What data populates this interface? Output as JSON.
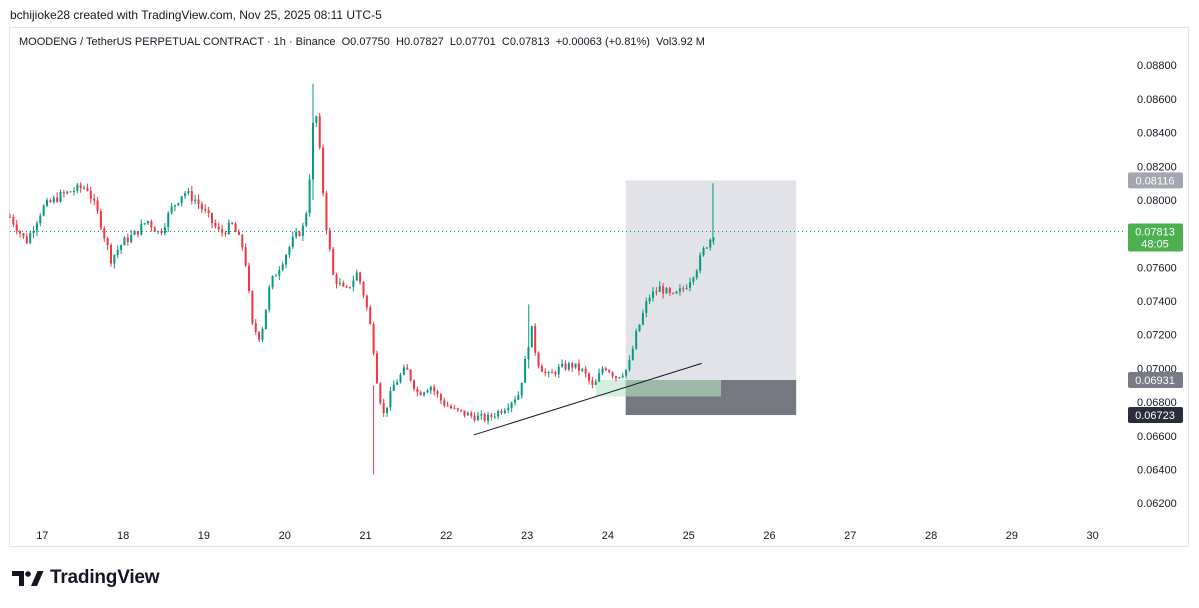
{
  "header": {
    "creator_line": "bchijioke28 created with TradingView.com, Nov 25, 2025 08:11 UTC-5"
  },
  "legend": {
    "symbol": "MOODENG / TetherUS PERPETUAL CONTRACT · 1h · Binance",
    "open_label": "O",
    "open": "0.07750",
    "high_label": "H",
    "high": "0.07827",
    "low_label": "L",
    "low": "0.07701",
    "close_label": "C",
    "close": "0.07813",
    "change": "+0.00063 (+0.81%)",
    "vol_label": "Vol",
    "vol": "3.92 M"
  },
  "brand": {
    "name": "TradingView"
  },
  "colors": {
    "up": "#089981",
    "down": "#f23645",
    "text": "#131722",
    "last_price_badge": "#4caf50",
    "target_badge": "#a3a6af",
    "entry_badge": "#787b86",
    "stop_badge": "#2a2e39",
    "target_zone": "#d1d4dc",
    "stop_zone": "#5d606b",
    "demand_zone": "#b7e4c7"
  },
  "chart_data": {
    "type": "candlestick",
    "title": "MOODENG / TetherUS PERPETUAL CONTRACT · 1h · Binance",
    "x_label": "",
    "y_label": "",
    "x_ticks": [
      "17",
      "18",
      "19",
      "20",
      "21",
      "22",
      "23",
      "24",
      "25",
      "26",
      "27",
      "28",
      "29",
      "30"
    ],
    "y_ticks": [
      "0.06200",
      "0.06400",
      "0.06600",
      "0.06800",
      "0.07000",
      "0.07200",
      "0.07400",
      "0.07600",
      "0.07800",
      "0.08000",
      "0.08200",
      "0.08400",
      "0.08600",
      "0.08800"
    ],
    "y_range": [
      0.061,
      0.0892
    ],
    "x_range_days": [
      16.6,
      30.4
    ],
    "price_path": [
      [
        16.6,
        0.079
      ],
      [
        16.8,
        0.0775
      ],
      [
        17.0,
        0.0795
      ],
      [
        17.2,
        0.0802
      ],
      [
        17.4,
        0.0806
      ],
      [
        17.55,
        0.0808
      ],
      [
        17.7,
        0.079
      ],
      [
        17.85,
        0.0765
      ],
      [
        18.0,
        0.0775
      ],
      [
        18.15,
        0.078
      ],
      [
        18.3,
        0.0788
      ],
      [
        18.45,
        0.078
      ],
      [
        18.6,
        0.0795
      ],
      [
        18.75,
        0.0805
      ],
      [
        18.9,
        0.08
      ],
      [
        19.05,
        0.079
      ],
      [
        19.2,
        0.078
      ],
      [
        19.35,
        0.0785
      ],
      [
        19.5,
        0.077
      ],
      [
        19.6,
        0.0725
      ],
      [
        19.7,
        0.0718
      ],
      [
        19.82,
        0.075
      ],
      [
        19.95,
        0.0762
      ],
      [
        20.1,
        0.0776
      ],
      [
        20.25,
        0.0785
      ],
      [
        20.32,
        0.082
      ],
      [
        20.37,
        0.086
      ],
      [
        20.45,
        0.082
      ],
      [
        20.5,
        0.079
      ],
      [
        20.6,
        0.0755
      ],
      [
        20.75,
        0.0745
      ],
      [
        20.9,
        0.0757
      ],
      [
        21.0,
        0.074
      ],
      [
        21.08,
        0.072
      ],
      [
        21.15,
        0.069
      ],
      [
        21.22,
        0.0672
      ],
      [
        21.35,
        0.069
      ],
      [
        21.5,
        0.07
      ],
      [
        21.65,
        0.0685
      ],
      [
        21.8,
        0.069
      ],
      [
        21.95,
        0.068
      ],
      [
        22.1,
        0.0675
      ],
      [
        22.3,
        0.0672
      ],
      [
        22.5,
        0.067
      ],
      [
        22.7,
        0.0676
      ],
      [
        22.9,
        0.0685
      ],
      [
        23.0,
        0.071
      ],
      [
        23.05,
        0.0725
      ],
      [
        23.12,
        0.0705
      ],
      [
        23.25,
        0.0695
      ],
      [
        23.4,
        0.07
      ],
      [
        23.55,
        0.0702
      ],
      [
        23.7,
        0.0698
      ],
      [
        23.82,
        0.0688
      ],
      [
        23.95,
        0.0702
      ],
      [
        24.1,
        0.0695
      ],
      [
        24.25,
        0.07
      ],
      [
        24.35,
        0.072
      ],
      [
        24.5,
        0.0742
      ],
      [
        24.65,
        0.0748
      ],
      [
        24.8,
        0.0742
      ],
      [
        24.95,
        0.0748
      ],
      [
        25.1,
        0.076
      ],
      [
        25.2,
        0.0772
      ],
      [
        25.32,
        0.0781
      ]
    ],
    "last_price": 0.07813,
    "last_price_label": "0.07813",
    "countdown": "48:05",
    "position": {
      "type": "long",
      "start_day": 24.22,
      "end_day": 26.33,
      "target": 0.08116,
      "target_label": "0.08116",
      "entry": 0.06931,
      "entry_label": "0.06931",
      "stop": 0.06723,
      "stop_label": "0.06723"
    },
    "trendline": {
      "start": [
        22.34,
        0.06605
      ],
      "end": [
        25.16,
        0.0703
      ]
    },
    "demand_zone": {
      "start_day": 23.85,
      "end_day": 25.4,
      "top": 0.06931,
      "bottom": 0.06833
    },
    "grid": false,
    "legend_position": "top-left"
  }
}
